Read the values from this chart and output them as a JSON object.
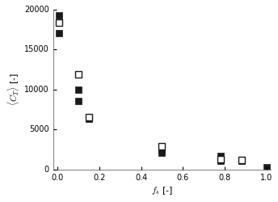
{
  "title": "",
  "xlabel": "f_s [-]",
  "ylabel": "<C_T> [-]",
  "xlim": [
    -0.02,
    1.02
  ],
  "ylim": [
    0,
    20000
  ],
  "yticks": [
    0,
    5000,
    10000,
    15000,
    20000
  ],
  "xticks": [
    0.0,
    0.2,
    0.4,
    0.6,
    0.8,
    1.0
  ],
  "closed_x": [
    0.005,
    0.005,
    0.1,
    0.1,
    0.15,
    0.5,
    0.5,
    0.78,
    0.78,
    0.88,
    1.0
  ],
  "closed_y": [
    19300,
    17000,
    10000,
    8500,
    6300,
    2500,
    2100,
    1700,
    1100,
    1100,
    300
  ],
  "open_x": [
    0.005,
    0.1,
    0.15,
    0.5,
    0.78,
    0.88
  ],
  "open_y": [
    18400,
    11900,
    6500,
    2850,
    1300,
    1150
  ],
  "marker_size": 6,
  "closed_color": "#1a1a1a",
  "open_color": "#1a1a1a",
  "tick_labelsize": 7,
  "axis_labelsize": 8,
  "spine_color": "#888888"
}
